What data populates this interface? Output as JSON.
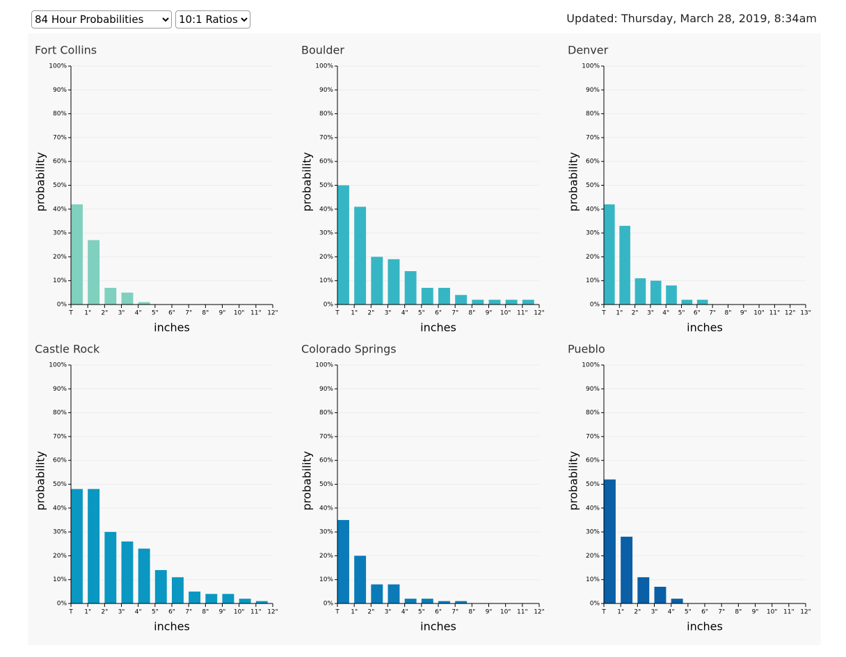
{
  "controls": [
    "84 Hour Probabilities",
    "10:1 Ratios"
  ],
  "updated": "Updated: Thursday, March 28, 2019, 8:34am",
  "chart_data": [
    {
      "type": "histogram",
      "title": "Fort Collins",
      "xlabel": "inches",
      "ylabel": "probability",
      "color": "#7fd0be",
      "bins": [
        "T",
        "1\"",
        "2\"",
        "3\"",
        "4\"",
        "5\"",
        "6\"",
        "7\"",
        "8\"",
        "9\"",
        "10\"",
        "11\"",
        "12\""
      ],
      "values": [
        42,
        27,
        7,
        5,
        1,
        0,
        0,
        0,
        0,
        0,
        0,
        0
      ],
      "ylim": [
        0,
        100
      ],
      "yticks": [
        {
          "value": 0,
          "label": "0%"
        },
        {
          "value": 10,
          "label": "10%"
        },
        {
          "value": 20,
          "label": "20%"
        },
        {
          "value": 30,
          "label": "30%"
        },
        {
          "value": 40,
          "label": "40%"
        },
        {
          "value": 50,
          "label": "50%"
        },
        {
          "value": 60,
          "label": "60%"
        },
        {
          "value": 70,
          "label": "70%"
        },
        {
          "value": 80,
          "label": "80%"
        },
        {
          "value": 90,
          "label": "90%"
        },
        {
          "value": 100,
          "label": "100%"
        }
      ],
      "grid": true
    },
    {
      "type": "histogram",
      "title": "Boulder",
      "xlabel": "inches",
      "ylabel": "probability",
      "color": "#36b6c4",
      "bins": [
        "T",
        "1\"",
        "2\"",
        "3\"",
        "4\"",
        "5\"",
        "6\"",
        "7\"",
        "8\"",
        "9\"",
        "10\"",
        "11\"",
        "12\""
      ],
      "values": [
        50,
        41,
        20,
        19,
        14,
        7,
        7,
        4,
        2,
        2,
        2,
        2
      ],
      "ylim": [
        0,
        100
      ],
      "yticks": [
        {
          "value": 0,
          "label": "0%"
        },
        {
          "value": 10,
          "label": "10%"
        },
        {
          "value": 20,
          "label": "20%"
        },
        {
          "value": 30,
          "label": "30%"
        },
        {
          "value": 40,
          "label": "40%"
        },
        {
          "value": 50,
          "label": "50%"
        },
        {
          "value": 60,
          "label": "60%"
        },
        {
          "value": 70,
          "label": "70%"
        },
        {
          "value": 80,
          "label": "80%"
        },
        {
          "value": 90,
          "label": "90%"
        },
        {
          "value": 100,
          "label": "100%"
        }
      ],
      "grid": true
    },
    {
      "type": "histogram",
      "title": "Denver",
      "xlabel": "inches",
      "ylabel": "probability",
      "color": "#36b6c4",
      "bins": [
        "T",
        "1\"",
        "2\"",
        "3\"",
        "4\"",
        "5\"",
        "6\"",
        "7\"",
        "8\"",
        "9\"",
        "10\"",
        "11\"",
        "12\"",
        "13\""
      ],
      "values": [
        42,
        33,
        11,
        10,
        8,
        2,
        2,
        0,
        0,
        0,
        0,
        0,
        0
      ],
      "ylim": [
        0,
        100
      ],
      "yticks": [
        {
          "value": 0,
          "label": "0%"
        },
        {
          "value": 10,
          "label": "10%"
        },
        {
          "value": 20,
          "label": "20%"
        },
        {
          "value": 30,
          "label": "30%"
        },
        {
          "value": 40,
          "label": "40%"
        },
        {
          "value": 50,
          "label": "50%"
        },
        {
          "value": 60,
          "label": "60%"
        },
        {
          "value": 70,
          "label": "70%"
        },
        {
          "value": 80,
          "label": "80%"
        },
        {
          "value": 90,
          "label": "90%"
        },
        {
          "value": 100,
          "label": "100%"
        }
      ],
      "grid": true
    },
    {
      "type": "histogram",
      "title": "Castle Rock",
      "xlabel": "inches",
      "ylabel": "probability",
      "color": "#0a97c2",
      "bins": [
        "T",
        "1\"",
        "2\"",
        "3\"",
        "4\"",
        "5\"",
        "6\"",
        "7\"",
        "8\"",
        "9\"",
        "10\"",
        "11\"",
        "12\""
      ],
      "values": [
        48,
        48,
        30,
        26,
        23,
        14,
        11,
        5,
        4,
        4,
        2,
        1
      ],
      "ylim": [
        0,
        100
      ],
      "yticks": [
        {
          "value": 0,
          "label": "0%"
        },
        {
          "value": 10,
          "label": "10%"
        },
        {
          "value": 20,
          "label": "20%"
        },
        {
          "value": 30,
          "label": "30%"
        },
        {
          "value": 40,
          "label": "40%"
        },
        {
          "value": 50,
          "label": "50%"
        },
        {
          "value": 60,
          "label": "60%"
        },
        {
          "value": 70,
          "label": "70%"
        },
        {
          "value": 80,
          "label": "80%"
        },
        {
          "value": 90,
          "label": "90%"
        },
        {
          "value": 100,
          "label": "100%"
        }
      ],
      "grid": true
    },
    {
      "type": "histogram",
      "title": "Colorado Springs",
      "xlabel": "inches",
      "ylabel": "probability",
      "color": "#0a7bb8",
      "bins": [
        "T",
        "1\"",
        "2\"",
        "3\"",
        "4\"",
        "5\"",
        "6\"",
        "7\"",
        "8\"",
        "9\"",
        "10\"",
        "11\"",
        "12\""
      ],
      "values": [
        35,
        20,
        8,
        8,
        2,
        2,
        1,
        1,
        0,
        0,
        0,
        0
      ],
      "ylim": [
        0,
        100
      ],
      "yticks": [
        {
          "value": 0,
          "label": "0%"
        },
        {
          "value": 10,
          "label": "10%"
        },
        {
          "value": 20,
          "label": "20%"
        },
        {
          "value": 30,
          "label": "30%"
        },
        {
          "value": 40,
          "label": "40%"
        },
        {
          "value": 50,
          "label": "50%"
        },
        {
          "value": 60,
          "label": "60%"
        },
        {
          "value": 70,
          "label": "70%"
        },
        {
          "value": 80,
          "label": "80%"
        },
        {
          "value": 90,
          "label": "90%"
        },
        {
          "value": 100,
          "label": "100%"
        }
      ],
      "grid": true
    },
    {
      "type": "histogram",
      "title": "Pueblo",
      "xlabel": "inches",
      "ylabel": "probability",
      "color": "#0a5fa6",
      "bins": [
        "T",
        "1\"",
        "2\"",
        "3\"",
        "4\"",
        "5\"",
        "6\"",
        "7\"",
        "8\"",
        "9\"",
        "10\"",
        "11\"",
        "12\""
      ],
      "values": [
        52,
        28,
        11,
        7,
        2,
        0,
        0,
        0,
        0,
        0,
        0,
        0
      ],
      "ylim": [
        0,
        100
      ],
      "yticks": [
        {
          "value": 0,
          "label": "0%"
        },
        {
          "value": 10,
          "label": "10%"
        },
        {
          "value": 20,
          "label": "20%"
        },
        {
          "value": 30,
          "label": "30%"
        },
        {
          "value": 40,
          "label": "40%"
        },
        {
          "value": 50,
          "label": "50%"
        },
        {
          "value": 60,
          "label": "60%"
        },
        {
          "value": 70,
          "label": "70%"
        },
        {
          "value": 80,
          "label": "80%"
        },
        {
          "value": 90,
          "label": "90%"
        },
        {
          "value": 100,
          "label": "100%"
        }
      ],
      "grid": true
    }
  ]
}
